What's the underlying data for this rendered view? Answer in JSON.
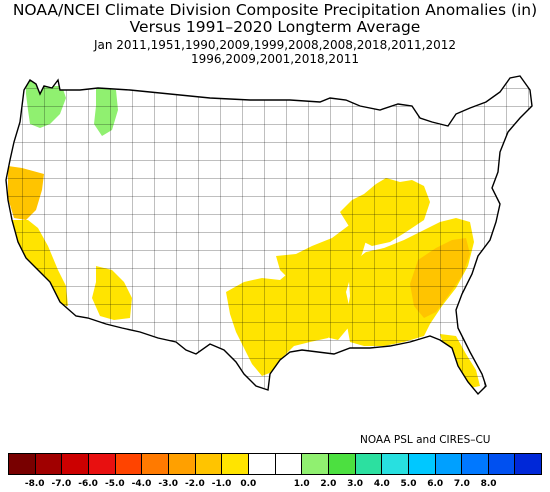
{
  "title": {
    "line1": "NOAA/NCEI Climate Division Composite Precipitation Anomalies (in)",
    "line2": "Versus 1991–2020 Longterm Average",
    "line3": "Jan   2011,1951,1990,2009,1999,2008,2008,2018,2011,2012",
    "line4": "1996,2009,2001,2018,2011"
  },
  "credit": "NOAA PSL and CIRES–CU",
  "colorbar": {
    "colors": [
      "#780000",
      "#a00000",
      "#cc0000",
      "#e81010",
      "#ff4400",
      "#ff7a00",
      "#ffa000",
      "#ffc400",
      "#ffe400",
      "#ffffff",
      "#ffffff",
      "#90f070",
      "#4ce040",
      "#2ce0a0",
      "#28e0e0",
      "#00c8ff",
      "#00a0ff",
      "#0078ff",
      "#0050f0",
      "#0028d8"
    ],
    "tick_labels": [
      "-8.0",
      "-7.0",
      "-6.0",
      "-5.0",
      "-4.0",
      "-3.0",
      "-2.0",
      "-1.0",
      "0.0",
      "1.0",
      "2.0",
      "3.0",
      "4.0",
      "5.0",
      "6.0",
      "7.0",
      "8.0"
    ]
  },
  "map": {
    "regions": [
      {
        "name": "pacific-northwest-wet",
        "anomaly_color": "#90f070"
      },
      {
        "name": "west-montana-wet",
        "anomaly_color": "#90f070"
      },
      {
        "name": "northern-california-dry",
        "anomaly_color": "#ffc400"
      },
      {
        "name": "southern-california-dry",
        "anomaly_color": "#ffe400"
      },
      {
        "name": "southern-arizona-dry",
        "anomaly_color": "#ffe400"
      },
      {
        "name": "texas-gulf-dry",
        "anomaly_color": "#ffe400"
      },
      {
        "name": "lower-mississippi-dry",
        "anomaly_color": "#ffe400"
      },
      {
        "name": "ohio-valley-dry",
        "anomaly_color": "#ffe400"
      },
      {
        "name": "southeast-dry",
        "anomaly_color": "#ffe400"
      },
      {
        "name": "carolinas-dry",
        "anomaly_color": "#ffc400"
      },
      {
        "name": "florida-dry",
        "anomaly_color": "#ffe400"
      }
    ]
  }
}
